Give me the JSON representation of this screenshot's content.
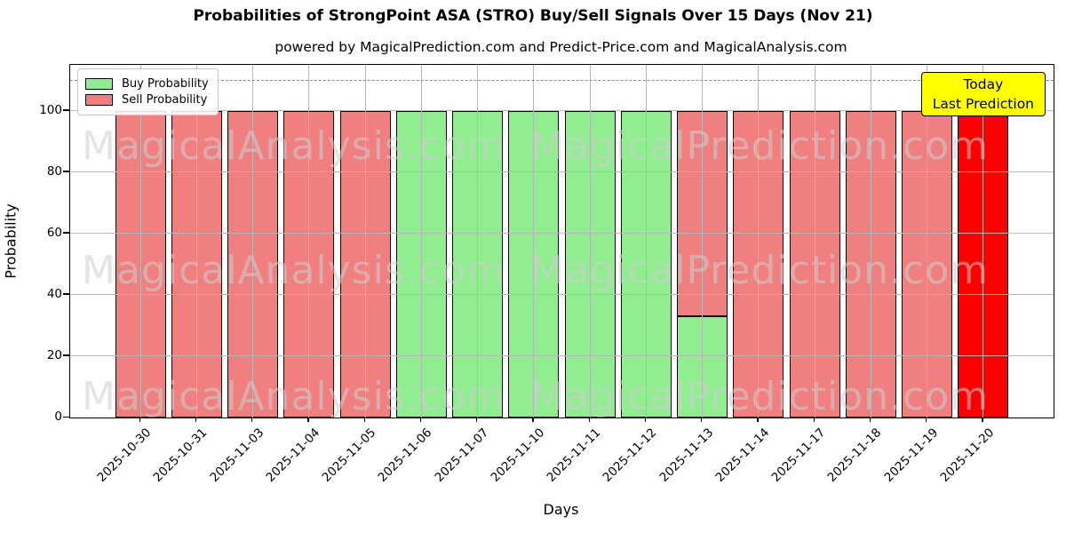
{
  "title": "Probabilities of StrongPoint ASA (STRO) Buy/Sell Signals Over 15 Days (Nov 21)",
  "subtitle": "powered by MagicalPrediction.com and Predict-Price.com and MagicalAnalysis.com",
  "legend": {
    "buy_label": "Buy Probability",
    "sell_label": "Sell Probability"
  },
  "annotation_box": {
    "line1": "Today",
    "line2": "Last Prediction"
  },
  "watermarks": {
    "left": "MagicalAnalysis.com",
    "right": "MagicalPrediction.com"
  },
  "colors": {
    "buy": "#90EE90",
    "sell": "#F08080",
    "today": "#FF0000",
    "annotation_bg": "#FFFF00",
    "grid": "#b6b6b6",
    "dashed_line": "#8a8a8a",
    "bar_edge": "#000000"
  },
  "axes": {
    "xlabel": "Days",
    "ylabel": "Probability",
    "yticks": [
      0,
      20,
      40,
      60,
      80,
      100
    ],
    "ylim": [
      0,
      115
    ],
    "dashed_line_y": 110
  },
  "chart_data": {
    "type": "bar",
    "stacked": true,
    "title": "Probabilities of StrongPoint ASA (STRO) Buy/Sell Signals Over 15 Days (Nov 21)",
    "xlabel": "Days",
    "ylabel": "Probability",
    "ylim": [
      0,
      115
    ],
    "grid": true,
    "legend_position": "upper left",
    "categories": [
      "2025-10-30",
      "2025-10-31",
      "2025-11-03",
      "2025-11-04",
      "2025-11-05",
      "2025-11-06",
      "2025-11-07",
      "2025-11-10",
      "2025-11-11",
      "2025-11-12",
      "2025-11-13",
      "2025-11-14",
      "2025-11-17",
      "2025-11-18",
      "2025-11-19",
      "2025-11-20"
    ],
    "series": [
      {
        "name": "Buy Probability",
        "color": "#90EE90",
        "values": [
          0,
          0,
          0,
          0,
          0,
          100,
          100,
          100,
          100,
          100,
          33,
          0,
          0,
          0,
          0,
          0
        ]
      },
      {
        "name": "Sell Probability",
        "color": "#F08080",
        "values": [
          100,
          100,
          100,
          100,
          100,
          0,
          0,
          0,
          0,
          0,
          67,
          100,
          100,
          100,
          100,
          100
        ]
      }
    ],
    "today_index": 15,
    "today_bar_color": "#FF0000"
  }
}
